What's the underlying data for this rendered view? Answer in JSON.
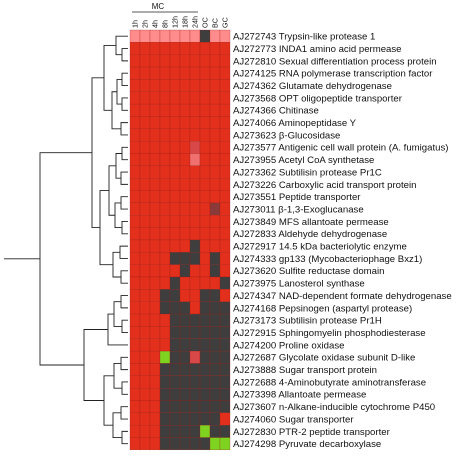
{
  "chart_data": {
    "type": "heatmap",
    "column_group_label": "MC",
    "columns": [
      "1h",
      "2h",
      "4h",
      "8h",
      "12h",
      "18h",
      "24h",
      "OC",
      "BC",
      "GC"
    ],
    "rows": [
      {
        "accession": "AJ272743",
        "name": "Trypsin-like protease 1"
      },
      {
        "accession": "AJ272773",
        "name": "INDA1 amino acid permease"
      },
      {
        "accession": "AJ272810",
        "name": "Sexual differentiation process protein"
      },
      {
        "accession": "AJ274125",
        "name": "RNA polymerase transcription factor"
      },
      {
        "accession": "AJ274362",
        "name": "Glutamate dehydrogenase"
      },
      {
        "accession": "AJ273568",
        "name": "OPT oligopeptide transporter"
      },
      {
        "accession": "AJ274366",
        "name": "Chitinase"
      },
      {
        "accession": "AJ274066",
        "name": "Aminopeptidase Y"
      },
      {
        "accession": "AJ273623",
        "name": "β-Glucosidase"
      },
      {
        "accession": "AJ273577",
        "name": "Antigenic cell wall protein (A. fumigatus)"
      },
      {
        "accession": "AJ273955",
        "name": "Acetyl CoA synthetase"
      },
      {
        "accession": "AJ273362",
        "name": "Subtilisin protease Pr1C"
      },
      {
        "accession": "AJ273226",
        "name": "Carboxylic acid transport protein"
      },
      {
        "accession": "AJ273551",
        "name": "Peptide transporter"
      },
      {
        "accession": "AJ273011",
        "name": "β-1,3-Exoglucanase"
      },
      {
        "accession": "AJ273849",
        "name": "MFS allantoate permease"
      },
      {
        "accession": "AJ272833",
        "name": "Aldehyde dehydrogenase"
      },
      {
        "accession": "AJ272917",
        "name": "14.5 kDa bacteriolytic enzyme"
      },
      {
        "accession": "AJ274333",
        "name": "gp133 (Mycobacteriophage Bxz1)"
      },
      {
        "accession": "AJ273620",
        "name": "Sulfite reductase domain"
      },
      {
        "accession": "AJ273975",
        "name": "Lanosterol synthase"
      },
      {
        "accession": "AJ274347",
        "name": "NAD-dependent formate dehydrogenase"
      },
      {
        "accession": "AJ274168",
        "name": "Pepsinogen (aspartyl protease)"
      },
      {
        "accession": "AJ273173",
        "name": "Subtilisin protease Pr1H"
      },
      {
        "accession": "AJ272915",
        "name": "Sphingomyelin phosphodiesterase"
      },
      {
        "accession": "AJ274200",
        "name": "Proline oxidase"
      },
      {
        "accession": "AJ272687",
        "name": "Glycolate oxidase subunit D-like"
      },
      {
        "accession": "AJ273888",
        "name": "Sugar transport protein"
      },
      {
        "accession": "AJ272688",
        "name": "4-Aminobutyrate aminotransferase"
      },
      {
        "accession": "AJ273398",
        "name": "Allantoate permease"
      },
      {
        "accession": "AJ273607",
        "name": "n-Alkane-inducible cytochrome P450"
      },
      {
        "accession": "AJ274060",
        "name": "Sugar transporter"
      },
      {
        "accession": "AJ272830",
        "name": "PTR-2 peptide transporter"
      },
      {
        "accession": "AJ274298",
        "name": "Pyruvate decarboxylase"
      }
    ],
    "values": [
      [
        "H",
        "H",
        "H",
        "H",
        "H",
        "H",
        "H",
        "G",
        "H",
        "H"
      ],
      [
        "R",
        "R",
        "R",
        "R",
        "R",
        "R",
        "R",
        "R",
        "R",
        "R"
      ],
      [
        "R",
        "R",
        "R",
        "R",
        "R",
        "R",
        "R",
        "R",
        "R",
        "R"
      ],
      [
        "R",
        "R",
        "R",
        "R",
        "R",
        "R",
        "R",
        "R",
        "R",
        "R"
      ],
      [
        "R",
        "R",
        "R",
        "R",
        "R",
        "R",
        "R",
        "R",
        "R",
        "R"
      ],
      [
        "R",
        "R",
        "R",
        "R",
        "R",
        "R",
        "R",
        "R",
        "R",
        "R"
      ],
      [
        "R",
        "R",
        "R",
        "R",
        "R",
        "R",
        "R",
        "R",
        "R",
        "R"
      ],
      [
        "R",
        "R",
        "R",
        "R",
        "R",
        "R",
        "R",
        "R",
        "R",
        "R"
      ],
      [
        "R",
        "R",
        "R",
        "R",
        "R",
        "R",
        "R",
        "R",
        "R",
        "R"
      ],
      [
        "R",
        "R",
        "R",
        "R",
        "R",
        "R",
        "P",
        "R",
        "R",
        "R"
      ],
      [
        "R",
        "R",
        "R",
        "R",
        "R",
        "R",
        "L",
        "R",
        "R",
        "R"
      ],
      [
        "R",
        "R",
        "R",
        "R",
        "R",
        "R",
        "R",
        "R",
        "R",
        "R"
      ],
      [
        "R",
        "R",
        "R",
        "R",
        "R",
        "R",
        "R",
        "R",
        "R",
        "R"
      ],
      [
        "R",
        "R",
        "R",
        "R",
        "R",
        "R",
        "R",
        "R",
        "R",
        "R"
      ],
      [
        "R",
        "R",
        "R",
        "R",
        "R",
        "R",
        "R",
        "R",
        "M",
        "R"
      ],
      [
        "R",
        "R",
        "R",
        "R",
        "R",
        "R",
        "R",
        "R",
        "R",
        "R"
      ],
      [
        "R",
        "R",
        "R",
        "R",
        "R",
        "R",
        "R",
        "R",
        "R",
        "R"
      ],
      [
        "R",
        "R",
        "R",
        "R",
        "R",
        "R",
        "G",
        "R",
        "R",
        "R"
      ],
      [
        "R",
        "R",
        "R",
        "R",
        "G",
        "G",
        "G",
        "R",
        "G",
        "R"
      ],
      [
        "R",
        "R",
        "R",
        "R",
        "R",
        "G",
        "R",
        "R",
        "G",
        "R"
      ],
      [
        "R",
        "R",
        "R",
        "R",
        "G",
        "R",
        "R",
        "R",
        "R",
        "G"
      ],
      [
        "R",
        "R",
        "R",
        "G",
        "G",
        "R",
        "R",
        "G",
        "G",
        "R"
      ],
      [
        "R",
        "R",
        "R",
        "G",
        "G",
        "G",
        "R",
        "G",
        "G",
        "G"
      ],
      [
        "R",
        "R",
        "R",
        "R",
        "G",
        "G",
        "G",
        "G",
        "G",
        "G"
      ],
      [
        "R",
        "R",
        "R",
        "R",
        "G",
        "G",
        "G",
        "G",
        "G",
        "G"
      ],
      [
        "R",
        "R",
        "R",
        "R",
        "G",
        "G",
        "G",
        "G",
        "G",
        "G"
      ],
      [
        "R",
        "R",
        "R",
        "V",
        "G",
        "G",
        "P",
        "G",
        "G",
        "G"
      ],
      [
        "R",
        "R",
        "R",
        "G",
        "G",
        "G",
        "G",
        "G",
        "G",
        "G"
      ],
      [
        "R",
        "R",
        "R",
        "G",
        "G",
        "G",
        "G",
        "G",
        "G",
        "G"
      ],
      [
        "R",
        "R",
        "R",
        "G",
        "G",
        "G",
        "G",
        "G",
        "G",
        "G"
      ],
      [
        "R",
        "R",
        "R",
        "G",
        "G",
        "G",
        "G",
        "G",
        "G",
        "G"
      ],
      [
        "R",
        "R",
        "R",
        "G",
        "G",
        "G",
        "G",
        "G",
        "G",
        "R"
      ],
      [
        "R",
        "R",
        "R",
        "G",
        "G",
        "G",
        "G",
        "V",
        "G",
        "G"
      ],
      [
        "R",
        "R",
        "R",
        "G",
        "G",
        "G",
        "G",
        "G",
        "V",
        "V"
      ]
    ],
    "color_key": {
      "H": "#ff8c8c",
      "L": "#f07070",
      "P": "#d94848",
      "R": "#e2301d",
      "M": "#8a3a38",
      "G": "#3e3e3e",
      "V": "#7ed321"
    },
    "colors": {
      "dendrogram": "#222222",
      "cell_border": "#9a1a10"
    },
    "dendrogram": true
  }
}
